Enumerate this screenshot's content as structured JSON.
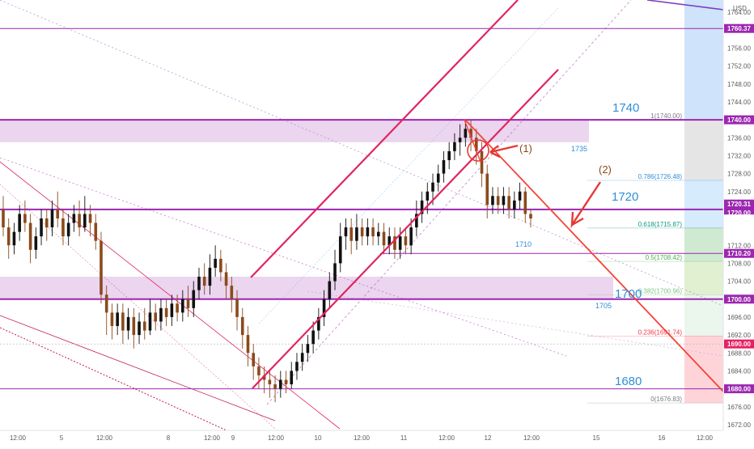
{
  "currency": "USD",
  "chart_data": {
    "type": "candlestick",
    "ylim": [
      1670,
      1766
    ],
    "y_ticks": [
      1672,
      1676,
      1680,
      1684,
      1688,
      1692,
      1696,
      1700,
      1704,
      1708,
      1712,
      1716,
      1720,
      1724,
      1728,
      1732,
      1736,
      1740,
      1744,
      1748,
      1752,
      1756,
      1760,
      1764
    ],
    "x_ticks": [
      "12:00",
      "5",
      "12:00",
      "8",
      "12:00",
      "9",
      "12:00",
      "10",
      "12:00",
      "11",
      "12:00",
      "12",
      "12:00",
      "15",
      "16",
      "12:00"
    ],
    "horizontal_levels": [
      1760.37,
      1740.0,
      1720.0,
      1710.2,
      1700.0,
      1680.0
    ],
    "price_tags": [
      "1760.37",
      "1740.00",
      "1720.31",
      "1720.00",
      "1718.60",
      "06:47",
      "1710.20",
      "1700.00",
      "1690.00",
      "1680.00"
    ],
    "zones": [
      {
        "from": 1735,
        "to": 1740,
        "label": "1735"
      },
      {
        "from": 1700,
        "to": 1705,
        "label": "1705"
      }
    ],
    "level_labels": [
      {
        "text": "1740",
        "value": 1740
      },
      {
        "text": "1720",
        "value": 1720
      },
      {
        "text": "1710",
        "value": 1710
      },
      {
        "text": "1700",
        "value": 1700
      },
      {
        "text": "1680",
        "value": 1680
      }
    ],
    "fibonacci": [
      {
        "label": "1(1740.00)",
        "value": 1740.0,
        "color": "#787b86"
      },
      {
        "label": "0.786(1726.48)",
        "value": 1726.48,
        "color": "#2f8fd8"
      },
      {
        "label": "0.618(1715.87)",
        "value": 1715.87,
        "color": "#089981"
      },
      {
        "label": "0.5(1708.42)",
        "value": 1708.42,
        "color": "#4caf50"
      },
      {
        "label": "0.382(1700.96)",
        "value": 1700.96,
        "color": "#81c784"
      },
      {
        "label": "0.236(1691.74)",
        "value": 1691.74,
        "color": "#f23645"
      },
      {
        "label": "0(1676.83)",
        "value": 1676.83,
        "color": "#787b86"
      }
    ],
    "annotations": [
      "(1)",
      "(2)"
    ],
    "candles": [
      [
        1720,
        1716,
        1723,
        1714
      ],
      [
        1716,
        1712,
        1718,
        1709
      ],
      [
        1712,
        1715,
        1717,
        1710
      ],
      [
        1715,
        1719,
        1721,
        1713
      ],
      [
        1719,
        1717,
        1722,
        1715
      ],
      [
        1717,
        1711,
        1719,
        1708
      ],
      [
        1711,
        1714,
        1716,
        1709
      ],
      [
        1714,
        1718,
        1720,
        1712
      ],
      [
        1718,
        1716,
        1720,
        1713
      ],
      [
        1716,
        1720,
        1722,
        1714
      ],
      [
        1720,
        1718,
        1724,
        1716
      ],
      [
        1718,
        1714,
        1720,
        1712
      ],
      [
        1714,
        1717,
        1719,
        1712
      ],
      [
        1717,
        1719,
        1721,
        1715
      ],
      [
        1719,
        1716,
        1722,
        1714
      ],
      [
        1716,
        1719,
        1723,
        1715
      ],
      [
        1719,
        1717,
        1721,
        1714
      ],
      [
        1717,
        1713,
        1719,
        1711
      ],
      [
        1713,
        1701,
        1715,
        1699
      ],
      [
        1701,
        1697,
        1703,
        1692
      ],
      [
        1697,
        1694,
        1699,
        1691
      ],
      [
        1694,
        1697,
        1699,
        1692
      ],
      [
        1697,
        1693,
        1699,
        1690
      ],
      [
        1693,
        1696,
        1698,
        1691
      ],
      [
        1696,
        1692,
        1698,
        1689
      ],
      [
        1692,
        1695,
        1697,
        1690
      ],
      [
        1695,
        1693,
        1698,
        1691
      ],
      [
        1693,
        1697,
        1700,
        1692
      ],
      [
        1697,
        1695,
        1699,
        1693
      ],
      [
        1695,
        1698,
        1700,
        1693
      ],
      [
        1698,
        1696,
        1700,
        1694
      ],
      [
        1696,
        1699,
        1701,
        1694
      ],
      [
        1699,
        1697,
        1701,
        1695
      ],
      [
        1697,
        1700,
        1702,
        1695
      ],
      [
        1700,
        1698,
        1703,
        1696
      ],
      [
        1698,
        1702,
        1704,
        1696
      ],
      [
        1702,
        1705,
        1707,
        1700
      ],
      [
        1705,
        1703,
        1708,
        1701
      ],
      [
        1703,
        1707,
        1710,
        1701
      ],
      [
        1707,
        1709,
        1712,
        1705
      ],
      [
        1709,
        1706,
        1711,
        1704
      ],
      [
        1706,
        1703,
        1708,
        1700
      ],
      [
        1703,
        1700,
        1705,
        1697
      ],
      [
        1700,
        1696,
        1702,
        1693
      ],
      [
        1696,
        1692,
        1698,
        1689
      ],
      [
        1692,
        1688,
        1694,
        1685
      ],
      [
        1688,
        1685,
        1690,
        1682
      ],
      [
        1685,
        1683,
        1687,
        1680
      ],
      [
        1683,
        1682,
        1685,
        1679
      ],
      [
        1682,
        1681,
        1684,
        1678
      ],
      [
        1681,
        1680,
        1683,
        1677
      ],
      [
        1680,
        1682,
        1684,
        1678
      ],
      [
        1682,
        1681,
        1684,
        1679
      ],
      [
        1681,
        1684,
        1686,
        1680
      ],
      [
        1684,
        1686,
        1688,
        1682
      ],
      [
        1686,
        1688,
        1690,
        1684
      ],
      [
        1688,
        1690,
        1692,
        1686
      ],
      [
        1690,
        1693,
        1695,
        1688
      ],
      [
        1693,
        1696,
        1698,
        1691
      ],
      [
        1696,
        1700,
        1702,
        1694
      ],
      [
        1700,
        1704,
        1706,
        1698
      ],
      [
        1704,
        1708,
        1711,
        1702
      ],
      [
        1708,
        1714,
        1717,
        1706
      ],
      [
        1714,
        1716,
        1718,
        1711
      ],
      [
        1716,
        1713,
        1718,
        1710
      ],
      [
        1713,
        1716,
        1719,
        1711
      ],
      [
        1716,
        1714,
        1718,
        1712
      ],
      [
        1714,
        1716,
        1718,
        1712
      ],
      [
        1716,
        1714,
        1718,
        1712
      ],
      [
        1714,
        1715,
        1717,
        1712
      ],
      [
        1715,
        1712,
        1717,
        1710
      ],
      [
        1712,
        1714,
        1716,
        1710
      ],
      [
        1714,
        1711,
        1716,
        1709
      ],
      [
        1711,
        1714,
        1716,
        1709
      ],
      [
        1714,
        1712,
        1716,
        1710
      ],
      [
        1712,
        1716,
        1718,
        1710
      ],
      [
        1716,
        1719,
        1722,
        1714
      ],
      [
        1719,
        1722,
        1724,
        1717
      ],
      [
        1722,
        1724,
        1726,
        1719
      ],
      [
        1724,
        1726,
        1728,
        1721
      ],
      [
        1726,
        1728,
        1730,
        1724
      ],
      [
        1728,
        1731,
        1733,
        1726
      ],
      [
        1731,
        1733,
        1735,
        1729
      ],
      [
        1733,
        1735,
        1737,
        1731
      ],
      [
        1735,
        1736,
        1739,
        1732
      ],
      [
        1736,
        1738,
        1740,
        1734
      ],
      [
        1738,
        1736,
        1740,
        1733
      ],
      [
        1736,
        1733,
        1738,
        1730
      ],
      [
        1733,
        1728,
        1735,
        1725
      ],
      [
        1728,
        1721,
        1730,
        1718
      ],
      [
        1721,
        1723,
        1725,
        1719
      ],
      [
        1723,
        1721,
        1725,
        1719
      ],
      [
        1721,
        1723,
        1725,
        1719
      ],
      [
        1723,
        1720,
        1725,
        1718
      ],
      [
        1720,
        1722,
        1724,
        1718
      ],
      [
        1722,
        1724,
        1726,
        1720
      ],
      [
        1724,
        1719,
        1725,
        1717
      ],
      [
        1719,
        1718,
        1720,
        1716
      ]
    ]
  }
}
